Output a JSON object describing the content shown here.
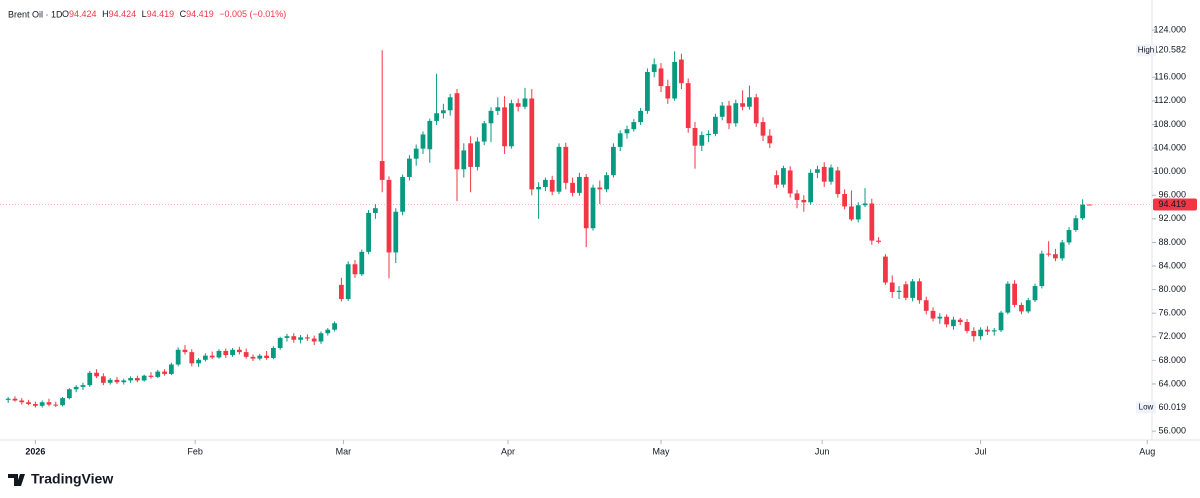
{
  "chart_data": {
    "type": "candlestick",
    "title": "Brent Oil · 1D",
    "header": {
      "o_label": "O",
      "o": 94.424,
      "h_label": "H",
      "h": 94.424,
      "l_label": "L",
      "l": 94.419,
      "c_label": "C",
      "c": 94.419,
      "change": "−0.005 (−0.01%)"
    },
    "up_color": "#089981",
    "down_color": "#f23645",
    "grid": false,
    "xlim": [
      -1.2,
      168.2
    ],
    "xticks": [
      {
        "value": 4,
        "label": "2026"
      },
      {
        "value": 27.5,
        "label": "Feb"
      },
      {
        "value": 49.3,
        "label": "Mar"
      },
      {
        "value": 73.5,
        "label": "Apr"
      },
      {
        "value": 96,
        "label": "May"
      },
      {
        "value": 119.7,
        "label": "Jun"
      },
      {
        "value": 143,
        "label": "Jul"
      },
      {
        "value": 167.5,
        "label": "Aug"
      }
    ],
    "ylim": [
      54.5,
      129.1
    ],
    "yticks": [
      {
        "value": 56,
        "label": "56.000"
      },
      {
        "value": 60,
        "label": "60.000"
      },
      {
        "value": 64,
        "label": "64.000"
      },
      {
        "value": 68,
        "label": "68.000"
      },
      {
        "value": 72,
        "label": "72.000"
      },
      {
        "value": 76,
        "label": "76.000"
      },
      {
        "value": 80,
        "label": "80.000"
      },
      {
        "value": 84,
        "label": "84.000"
      },
      {
        "value": 88,
        "label": "88.000"
      },
      {
        "value": 92,
        "label": "92.000"
      },
      {
        "value": 96,
        "label": "96.000"
      },
      {
        "value": 100,
        "label": "100.000"
      },
      {
        "value": 104,
        "label": "104.000"
      },
      {
        "value": 108,
        "label": "108.000"
      },
      {
        "value": 112,
        "label": "112.000"
      },
      {
        "value": 116,
        "label": "116.000"
      },
      {
        "value": 120,
        "label": "120.000"
      },
      {
        "value": 124,
        "label": "124.000"
      }
    ],
    "high": {
      "label": "High",
      "value": 120.582
    },
    "low": {
      "label": "Low",
      "value": 60.019
    },
    "last_price": 94.419,
    "brand": "TradingView",
    "ohlc": [
      [
        61.3,
        61.8,
        60.8,
        61.5
      ],
      [
        61.5,
        61.9,
        61.0,
        61.2
      ],
      [
        61.2,
        61.6,
        60.5,
        60.9
      ],
      [
        60.9,
        61.3,
        60.4,
        60.6
      ],
      [
        60.6,
        61.0,
        60.0,
        60.3
      ],
      [
        60.3,
        61.2,
        60.0,
        60.9
      ],
      [
        60.9,
        61.5,
        60.2,
        60.5
      ],
      [
        60.5,
        61.0,
        60.1,
        60.4
      ],
      [
        60.4,
        61.8,
        60.2,
        61.6
      ],
      [
        61.6,
        63.3,
        61.4,
        63.1
      ],
      [
        63.1,
        63.8,
        62.6,
        63.5
      ],
      [
        63.5,
        64.2,
        63.0,
        63.8
      ],
      [
        63.8,
        66.2,
        63.5,
        65.9
      ],
      [
        65.9,
        66.5,
        65.0,
        65.3
      ],
      [
        65.3,
        65.8,
        63.8,
        64.2
      ],
      [
        64.2,
        65.0,
        63.9,
        64.7
      ],
      [
        64.7,
        65.2,
        64.0,
        64.3
      ],
      [
        64.3,
        64.9,
        63.9,
        64.6
      ],
      [
        64.6,
        65.3,
        64.2,
        65.0
      ],
      [
        65.0,
        65.4,
        64.3,
        64.6
      ],
      [
        64.6,
        65.6,
        64.4,
        65.4
      ],
      [
        65.4,
        66.0,
        64.9,
        65.2
      ],
      [
        65.2,
        66.4,
        65.0,
        66.1
      ],
      [
        66.1,
        66.5,
        65.4,
        65.7
      ],
      [
        65.7,
        67.6,
        65.5,
        67.3
      ],
      [
        67.3,
        70.2,
        67.0,
        69.8
      ],
      [
        69.8,
        70.6,
        69.0,
        69.4
      ],
      [
        69.4,
        69.9,
        67.0,
        67.5
      ],
      [
        67.5,
        68.4,
        66.9,
        68.1
      ],
      [
        68.1,
        69.2,
        67.8,
        68.8
      ],
      [
        68.8,
        69.5,
        68.2,
        68.5
      ],
      [
        68.5,
        69.9,
        68.3,
        69.6
      ],
      [
        69.6,
        70.0,
        68.4,
        68.9
      ],
      [
        68.9,
        70.1,
        68.6,
        69.8
      ],
      [
        69.8,
        70.3,
        69.0,
        69.4
      ],
      [
        69.4,
        70.0,
        68.3,
        68.6
      ],
      [
        68.6,
        69.0,
        67.9,
        68.3
      ],
      [
        68.3,
        69.1,
        68.0,
        68.8
      ],
      [
        68.8,
        69.6,
        68.1,
        68.4
      ],
      [
        68.4,
        70.4,
        68.2,
        70.1
      ],
      [
        70.1,
        72.0,
        69.8,
        71.8
      ],
      [
        71.8,
        72.5,
        71.2,
        72.1
      ],
      [
        72.1,
        72.6,
        71.0,
        71.5
      ],
      [
        71.5,
        72.3,
        70.9,
        71.9
      ],
      [
        71.9,
        72.4,
        71.3,
        71.7
      ],
      [
        71.7,
        72.2,
        70.6,
        71.2
      ],
      [
        71.2,
        72.9,
        70.8,
        72.6
      ],
      [
        72.6,
        73.5,
        72.2,
        73.2
      ],
      [
        73.2,
        74.6,
        72.9,
        74.3
      ],
      [
        80.8,
        82.0,
        78.0,
        78.4
      ],
      [
        78.4,
        84.8,
        78.1,
        84.3
      ],
      [
        84.3,
        85.0,
        82.0,
        82.6
      ],
      [
        82.6,
        86.8,
        82.3,
        86.4
      ],
      [
        86.4,
        93.5,
        86.0,
        93.0
      ],
      [
        93.0,
        94.5,
        92.0,
        93.8
      ],
      [
        101.8,
        120.582,
        96.5,
        98.6
      ],
      [
        98.6,
        99.2,
        81.9,
        86.3
      ],
      [
        86.3,
        93.8,
        84.5,
        93.2
      ],
      [
        93.2,
        99.5,
        92.6,
        99.1
      ],
      [
        99.1,
        102.8,
        98.5,
        102.2
      ],
      [
        102.2,
        104.6,
        101.0,
        103.9
      ],
      [
        103.9,
        106.8,
        103.0,
        106.3
      ],
      [
        103.8,
        109.0,
        101.5,
        108.6
      ],
      [
        108.6,
        116.6,
        107.9,
        109.9
      ],
      [
        109.9,
        111.5,
        109.0,
        110.4
      ],
      [
        110.4,
        113.2,
        109.5,
        112.6
      ],
      [
        113.3,
        114.0,
        95.0,
        100.4
      ],
      [
        100.4,
        104.8,
        99.0,
        103.6
      ],
      [
        104.8,
        106.0,
        96.5,
        100.8
      ],
      [
        100.8,
        105.8,
        100.2,
        105.1
      ],
      [
        105.1,
        108.6,
        104.5,
        108.2
      ],
      [
        108.2,
        110.9,
        105.0,
        110.3
      ],
      [
        110.3,
        112.6,
        109.6,
        110.9
      ],
      [
        110.9,
        112.8,
        103.0,
        104.3
      ],
      [
        104.3,
        112.2,
        103.9,
        111.6
      ],
      [
        111.6,
        112.4,
        110.2,
        111.0
      ],
      [
        111.0,
        114.2,
        110.6,
        112.4
      ],
      [
        112.4,
        114.0,
        96.0,
        97.0
      ],
      [
        97.0,
        98.2,
        92.0,
        97.4
      ],
      [
        97.4,
        99.0,
        96.7,
        98.6
      ],
      [
        98.6,
        99.3,
        96.0,
        96.6
      ],
      [
        96.6,
        104.8,
        96.2,
        104.2
      ],
      [
        104.2,
        104.9,
        97.0,
        98.1
      ],
      [
        98.1,
        99.0,
        95.8,
        96.4
      ],
      [
        96.4,
        99.8,
        95.9,
        99.1
      ],
      [
        99.1,
        99.6,
        87.2,
        90.4
      ],
      [
        90.4,
        97.8,
        90.0,
        97.3
      ],
      [
        97.3,
        98.5,
        94.5,
        97.0
      ],
      [
        97.0,
        99.9,
        96.5,
        99.4
      ],
      [
        99.4,
        104.8,
        99.0,
        104.2
      ],
      [
        104.2,
        107.0,
        103.5,
        106.5
      ],
      [
        106.5,
        107.8,
        105.6,
        107.2
      ],
      [
        107.2,
        108.9,
        106.8,
        108.4
      ],
      [
        108.4,
        110.8,
        107.9,
        110.3
      ],
      [
        110.3,
        117.5,
        109.8,
        116.9
      ],
      [
        116.9,
        119.2,
        116.0,
        118.2
      ],
      [
        117.5,
        118.4,
        113.5,
        114.5
      ],
      [
        114.5,
        115.6,
        111.5,
        112.4
      ],
      [
        112.4,
        120.4,
        112.0,
        118.6
      ],
      [
        119.0,
        120.0,
        114.0,
        115.0
      ],
      [
        115.0,
        115.8,
        106.6,
        107.4
      ],
      [
        107.4,
        108.4,
        100.5,
        104.4
      ],
      [
        104.4,
        106.8,
        103.5,
        106.2
      ],
      [
        106.2,
        107.0,
        105.0,
        106.4
      ],
      [
        106.4,
        109.8,
        106.0,
        109.3
      ],
      [
        109.3,
        111.8,
        108.7,
        111.2
      ],
      [
        111.2,
        112.0,
        107.2,
        108.2
      ],
      [
        108.2,
        112.2,
        107.6,
        111.6
      ],
      [
        111.6,
        113.8,
        110.4,
        111.0
      ],
      [
        111.0,
        114.6,
        110.5,
        112.6
      ],
      [
        112.6,
        113.2,
        107.6,
        108.2
      ],
      [
        108.4,
        109.2,
        105.2,
        106.1
      ],
      [
        106.1,
        107.2,
        104.0,
        104.8
      ],
      [
        99.4,
        100.2,
        97.2,
        97.8
      ],
      [
        97.8,
        101.0,
        97.3,
        100.6
      ],
      [
        100.2,
        100.9,
        95.6,
        96.3
      ],
      [
        96.3,
        96.9,
        93.8,
        95.2
      ],
      [
        95.2,
        96.0,
        93.2,
        94.8
      ],
      [
        94.8,
        100.4,
        94.4,
        99.8
      ],
      [
        99.8,
        101.0,
        98.9,
        100.4
      ],
      [
        100.8,
        101.6,
        97.4,
        98.3
      ],
      [
        98.3,
        101.2,
        97.8,
        100.7
      ],
      [
        100.2,
        100.8,
        95.6,
        96.2
      ],
      [
        96.2,
        97.0,
        93.6,
        94.1
      ],
      [
        94.1,
        96.8,
        91.6,
        91.9
      ],
      [
        91.9,
        94.8,
        91.4,
        94.3
      ],
      [
        94.3,
        97.2,
        94.0,
        94.6
      ],
      [
        94.6,
        95.4,
        87.6,
        88.3
      ],
      [
        88.3,
        88.9,
        87.8,
        88.1
      ],
      [
        85.6,
        86.0,
        80.8,
        81.2
      ],
      [
        81.2,
        82.4,
        78.6,
        79.6
      ],
      [
        79.6,
        80.6,
        78.4,
        79.8
      ],
      [
        80.9,
        81.4,
        78.2,
        78.6
      ],
      [
        78.6,
        81.8,
        78.0,
        81.4
      ],
      [
        81.4,
        81.9,
        77.6,
        78.2
      ],
      [
        78.2,
        78.8,
        75.8,
        76.4
      ],
      [
        76.4,
        77.0,
        74.6,
        75.1
      ],
      [
        75.1,
        76.0,
        74.2,
        75.4
      ],
      [
        75.4,
        75.8,
        73.6,
        74.1
      ],
      [
        73.8,
        75.4,
        73.2,
        74.9
      ],
      [
        74.9,
        75.2,
        74.0,
        74.5
      ],
      [
        74.5,
        75.0,
        72.6,
        73.0
      ],
      [
        73.0,
        73.6,
        71.2,
        72.1
      ],
      [
        72.1,
        73.6,
        71.5,
        73.2
      ],
      [
        73.2,
        73.8,
        72.3,
        72.9
      ],
      [
        72.9,
        73.5,
        72.2,
        73.1
      ],
      [
        73.1,
        76.4,
        72.8,
        76.1
      ],
      [
        76.1,
        81.4,
        75.8,
        81.0
      ],
      [
        81.0,
        81.6,
        77.0,
        77.4
      ],
      [
        77.4,
        77.8,
        75.8,
        76.3
      ],
      [
        76.3,
        78.6,
        76.0,
        78.2
      ],
      [
        78.2,
        81.0,
        77.9,
        80.6
      ],
      [
        80.6,
        86.6,
        80.2,
        86.1
      ],
      [
        86.1,
        88.2,
        85.6,
        86.0
      ],
      [
        86.0,
        86.9,
        84.8,
        85.3
      ],
      [
        85.3,
        88.4,
        84.9,
        88.0
      ],
      [
        88.0,
        90.6,
        87.6,
        90.1
      ],
      [
        90.1,
        92.6,
        89.8,
        92.1
      ],
      [
        92.1,
        95.3,
        91.8,
        94.4
      ],
      [
        94.424,
        94.424,
        94.419,
        94.419
      ]
    ]
  }
}
